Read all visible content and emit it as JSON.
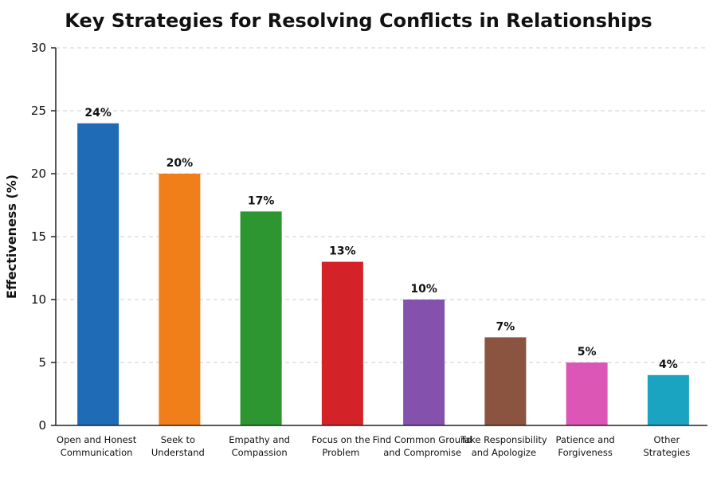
{
  "chart_data": {
    "type": "bar",
    "title": "Key Strategies for Resolving Conflicts in Relationships",
    "xlabel": "",
    "ylabel": "Effectiveness (%)",
    "ylim": [
      0,
      30
    ],
    "yticks": [
      0,
      5,
      10,
      15,
      20,
      25,
      30
    ],
    "grid": true,
    "categories": [
      [
        "Open and Honest",
        "Communication"
      ],
      [
        "Seek to",
        "Understand"
      ],
      [
        "Empathy and",
        "Compassion"
      ],
      [
        "Focus on the",
        "Problem"
      ],
      [
        "Find Common Ground",
        "and Compromise"
      ],
      [
        "Take Responsibility",
        "and Apologize"
      ],
      [
        "Patience and",
        "Forgiveness"
      ],
      [
        "Other",
        "Strategies"
      ]
    ],
    "values": [
      24,
      20,
      17,
      13,
      10,
      7,
      5,
      4
    ],
    "data_labels": [
      "24%",
      "20%",
      "17%",
      "13%",
      "10%",
      "7%",
      "5%",
      "4%"
    ],
    "colors": [
      "#1f6bb5",
      "#f07f1a",
      "#2e9630",
      "#d32228",
      "#8452ad",
      "#8a5440",
      "#dc56b5",
      "#1ba3c2"
    ]
  }
}
